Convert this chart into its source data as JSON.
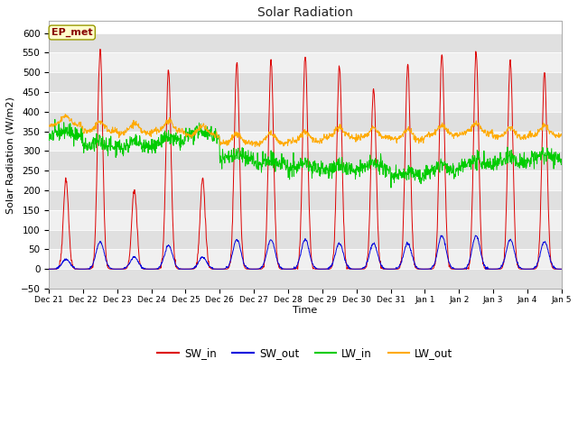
{
  "title": "Solar Radiation",
  "xlabel": "Time",
  "ylabel": "Solar Radiation (W/m2)",
  "ylim": [
    -50,
    630
  ],
  "yticks": [
    -50,
    0,
    50,
    100,
    150,
    200,
    250,
    300,
    350,
    400,
    450,
    500,
    550,
    600
  ],
  "colors": {
    "SW_in": "#dd0000",
    "SW_out": "#0000dd",
    "LW_in": "#00cc00",
    "LW_out": "#ffaa00"
  },
  "annotation_text": "EP_met",
  "annotation_box_facecolor": "#ffffcc",
  "annotation_box_edgecolor": "#999900",
  "annotation_text_color": "#880000",
  "fig_facecolor": "#ffffff",
  "ax_facecolor": "#ffffff",
  "band_color_dark": "#e0e0e0",
  "band_color_light": "#f0f0f0",
  "grid_color": "#ffffff",
  "tick_labels": [
    "Dec 21",
    "Dec 22",
    "Dec 23",
    "Dec 24",
    "Dec 25",
    "Dec 26",
    "Dec 27",
    "Dec 28",
    "Dec 29",
    "Dec 30",
    "Dec 31",
    "Jan 1",
    "Jan 2",
    "Jan 3",
    "Jan 4",
    "Jan 5"
  ],
  "legend_labels": [
    "SW_in",
    "SW_out",
    "LW_in",
    "LW_out"
  ],
  "sw_peaks": [
    230,
    560,
    200,
    505,
    230,
    525,
    530,
    540,
    515,
    460,
    520,
    550,
    550,
    530,
    500
  ],
  "sw_out_peaks": [
    25,
    70,
    30,
    60,
    30,
    75,
    75,
    75,
    65,
    65,
    65,
    85,
    85,
    75,
    70
  ],
  "lw_in_bases": [
    340,
    310,
    310,
    320,
    340,
    280,
    265,
    255,
    250,
    255,
    235,
    250,
    265,
    270,
    280
  ],
  "lw_out_bases": [
    365,
    350,
    345,
    350,
    340,
    320,
    320,
    325,
    335,
    335,
    330,
    340,
    345,
    335,
    340
  ],
  "n_days": 15
}
